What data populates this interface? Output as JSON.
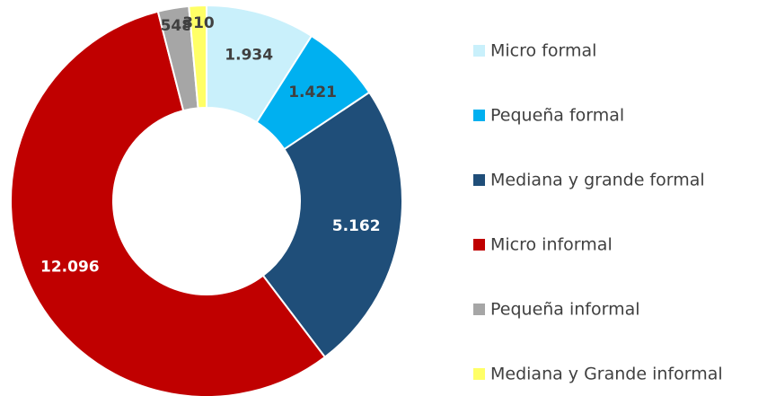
{
  "chart_data": {
    "type": "donut",
    "categories": [
      "Micro formal",
      "Pequeña formal",
      "Mediana y grande formal",
      "Micro informal",
      "Pequeña informal",
      "Mediana y Grande informal"
    ],
    "values": [
      1934,
      1421,
      5162,
      12096,
      548,
      310
    ],
    "value_labels": [
      "1.934",
      "1.421",
      "5.162",
      "12.096",
      "548",
      "310"
    ],
    "colors": [
      "#c9f0fb",
      "#00b0f0",
      "#1f4e79",
      "#c00000",
      "#a6a6a6",
      "#ffff66"
    ],
    "legend": "right"
  }
}
